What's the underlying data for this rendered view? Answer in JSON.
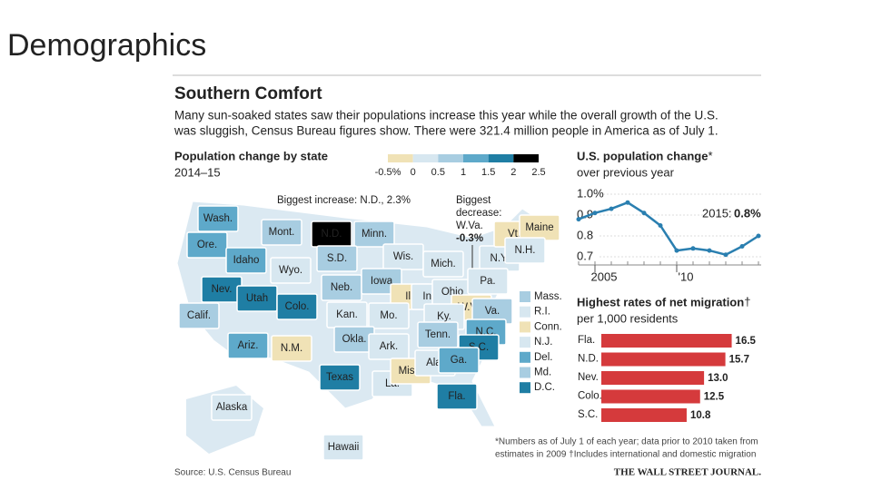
{
  "slide_title": "Demographics",
  "chart_data": [
    {
      "type": "map",
      "title": "Southern Comfort",
      "subtitle": [
        "Many sun-soaked states saw their populations increase this year while the overall growth of the U.S.",
        "was sluggish, Census Bureau figures show. There were 321.4 million people in America as of July 1."
      ],
      "panel_title": "Population change by state",
      "period": "2014–15",
      "legend_ticks": [
        {
          "value": -0.5,
          "label": "-0.5%"
        },
        0,
        0.5,
        1,
        1.5,
        2,
        2.5
      ],
      "colors": [
        "#f0e2b6",
        "#d7e7f0",
        "#a8cde1",
        "#5ea9ca",
        "#1f7ea4",
        "#000000"
      ],
      "annotations": [
        "Biggest increase: N.D., 2.3%",
        "Biggest",
        "decrease:",
        "W.Va.",
        "-0.3%"
      ],
      "regions": [
        {
          "name": "Wash.",
          "value": 1.4
        },
        {
          "name": "Ore.",
          "value": 1.4
        },
        {
          "name": "Mont.",
          "value": 0.8
        },
        {
          "name": "N.D.",
          "value": 2.3
        },
        {
          "name": "Minn.",
          "value": 0.6
        },
        {
          "name": "Idaho",
          "value": 1.2
        },
        {
          "name": "Wyo.",
          "value": 0.3
        },
        {
          "name": "S.D.",
          "value": 0.7
        },
        {
          "name": "Wis.",
          "value": 0.2
        },
        {
          "name": "Mich.",
          "value": 0.1
        },
        {
          "name": "N.Y.",
          "value": 0.1
        },
        {
          "name": "Vt.",
          "value": -0.1
        },
        {
          "name": "Maine",
          "value": -0.1
        },
        {
          "name": "N.H.",
          "value": 0.2
        },
        {
          "name": "Nev.",
          "value": 1.7
        },
        {
          "name": "Utah",
          "value": 1.7
        },
        {
          "name": "Colo.",
          "value": 1.8
        },
        {
          "name": "Neb.",
          "value": 0.7
        },
        {
          "name": "Iowa",
          "value": 0.5
        },
        {
          "name": "Ill.",
          "value": -0.2
        },
        {
          "name": "Ind.",
          "value": 0.3
        },
        {
          "name": "Ohio",
          "value": 0.1
        },
        {
          "name": "Pa.",
          "value": 0.1
        },
        {
          "name": "W.Va.",
          "value": -0.3
        },
        {
          "name": "Va.",
          "value": 0.6
        },
        {
          "name": "Calif.",
          "value": 0.9
        },
        {
          "name": "Kan.",
          "value": 0.3
        },
        {
          "name": "Mo.",
          "value": 0.3
        },
        {
          "name": "Ky.",
          "value": 0.3
        },
        {
          "name": "Tenn.",
          "value": 0.7
        },
        {
          "name": "N.C.",
          "value": 1.1
        },
        {
          "name": "Ariz.",
          "value": 1.4
        },
        {
          "name": "N.M.",
          "value": -0.1
        },
        {
          "name": "Okla.",
          "value": 0.8
        },
        {
          "name": "Ark.",
          "value": 0.3
        },
        {
          "name": "S.C.",
          "value": 1.6
        },
        {
          "name": "Texas",
          "value": 1.8
        },
        {
          "name": "La.",
          "value": 0.4
        },
        {
          "name": "Miss.",
          "value": -0.1
        },
        {
          "name": "Ala.",
          "value": 0.3
        },
        {
          "name": "Ga.",
          "value": 1.1
        },
        {
          "name": "Fla.",
          "value": 1.9
        },
        {
          "name": "Alaska",
          "value": 0.2
        },
        {
          "name": "Hawaii",
          "value": 0.3
        }
      ],
      "east_regions": [
        {
          "name": "Mass.",
          "value": 0.6
        },
        {
          "name": "R.I.",
          "value": 0.1
        },
        {
          "name": "Conn.",
          "value": -0.1
        },
        {
          "name": "N.J.",
          "value": 0.2
        },
        {
          "name": "Del.",
          "value": 1.1
        },
        {
          "name": "Md.",
          "value": 0.8
        },
        {
          "name": "D.C.",
          "value": 1.7
        }
      ]
    },
    {
      "type": "line",
      "title": "U.S. population change",
      "title_mark": "*",
      "subtitle": "over previous year",
      "x": [
        2004,
        2005,
        2006,
        2007,
        2008,
        2009,
        2010,
        2011,
        2012,
        2013,
        2014,
        2015
      ],
      "values": [
        0.88,
        0.91,
        0.93,
        0.96,
        0.91,
        0.85,
        0.73,
        0.74,
        0.73,
        0.71,
        0.75,
        0.8
      ],
      "color": "#2a7fb0",
      "xlim": [
        2004,
        2015
      ],
      "xticks": [
        2005,
        {
          "value": 2010,
          "label": "'10"
        }
      ],
      "ylim": [
        0.7,
        1.0
      ],
      "yticks": [
        {
          "value": 1.0,
          "label": "1.0%"
        },
        0.9,
        0.8,
        0.7
      ],
      "annotation": [
        "2015:",
        "0.8%"
      ]
    },
    {
      "type": "bar",
      "title": "Highest rates of net migration",
      "title_mark": "†",
      "subtitle": "per 1,000 residents",
      "categories": [
        "Fla.",
        "N.D.",
        "Nev.",
        "Colo.",
        "S.C."
      ],
      "values": [
        16.5,
        15.7,
        13.0,
        12.5,
        10.8
      ],
      "value_labels": [
        "16.5",
        "15.7",
        "13.0",
        "12.5",
        "10.8"
      ],
      "color": "#d53a3c"
    }
  ],
  "footnote": [
    "*Numbers as of July 1 of each year; data prior to 2010 taken from",
    "estimates in 2009  †Includes international and domestic migration"
  ],
  "source": "Source: U.S. Census Bureau",
  "publisher": "THE WALL STREET JOURNAL."
}
